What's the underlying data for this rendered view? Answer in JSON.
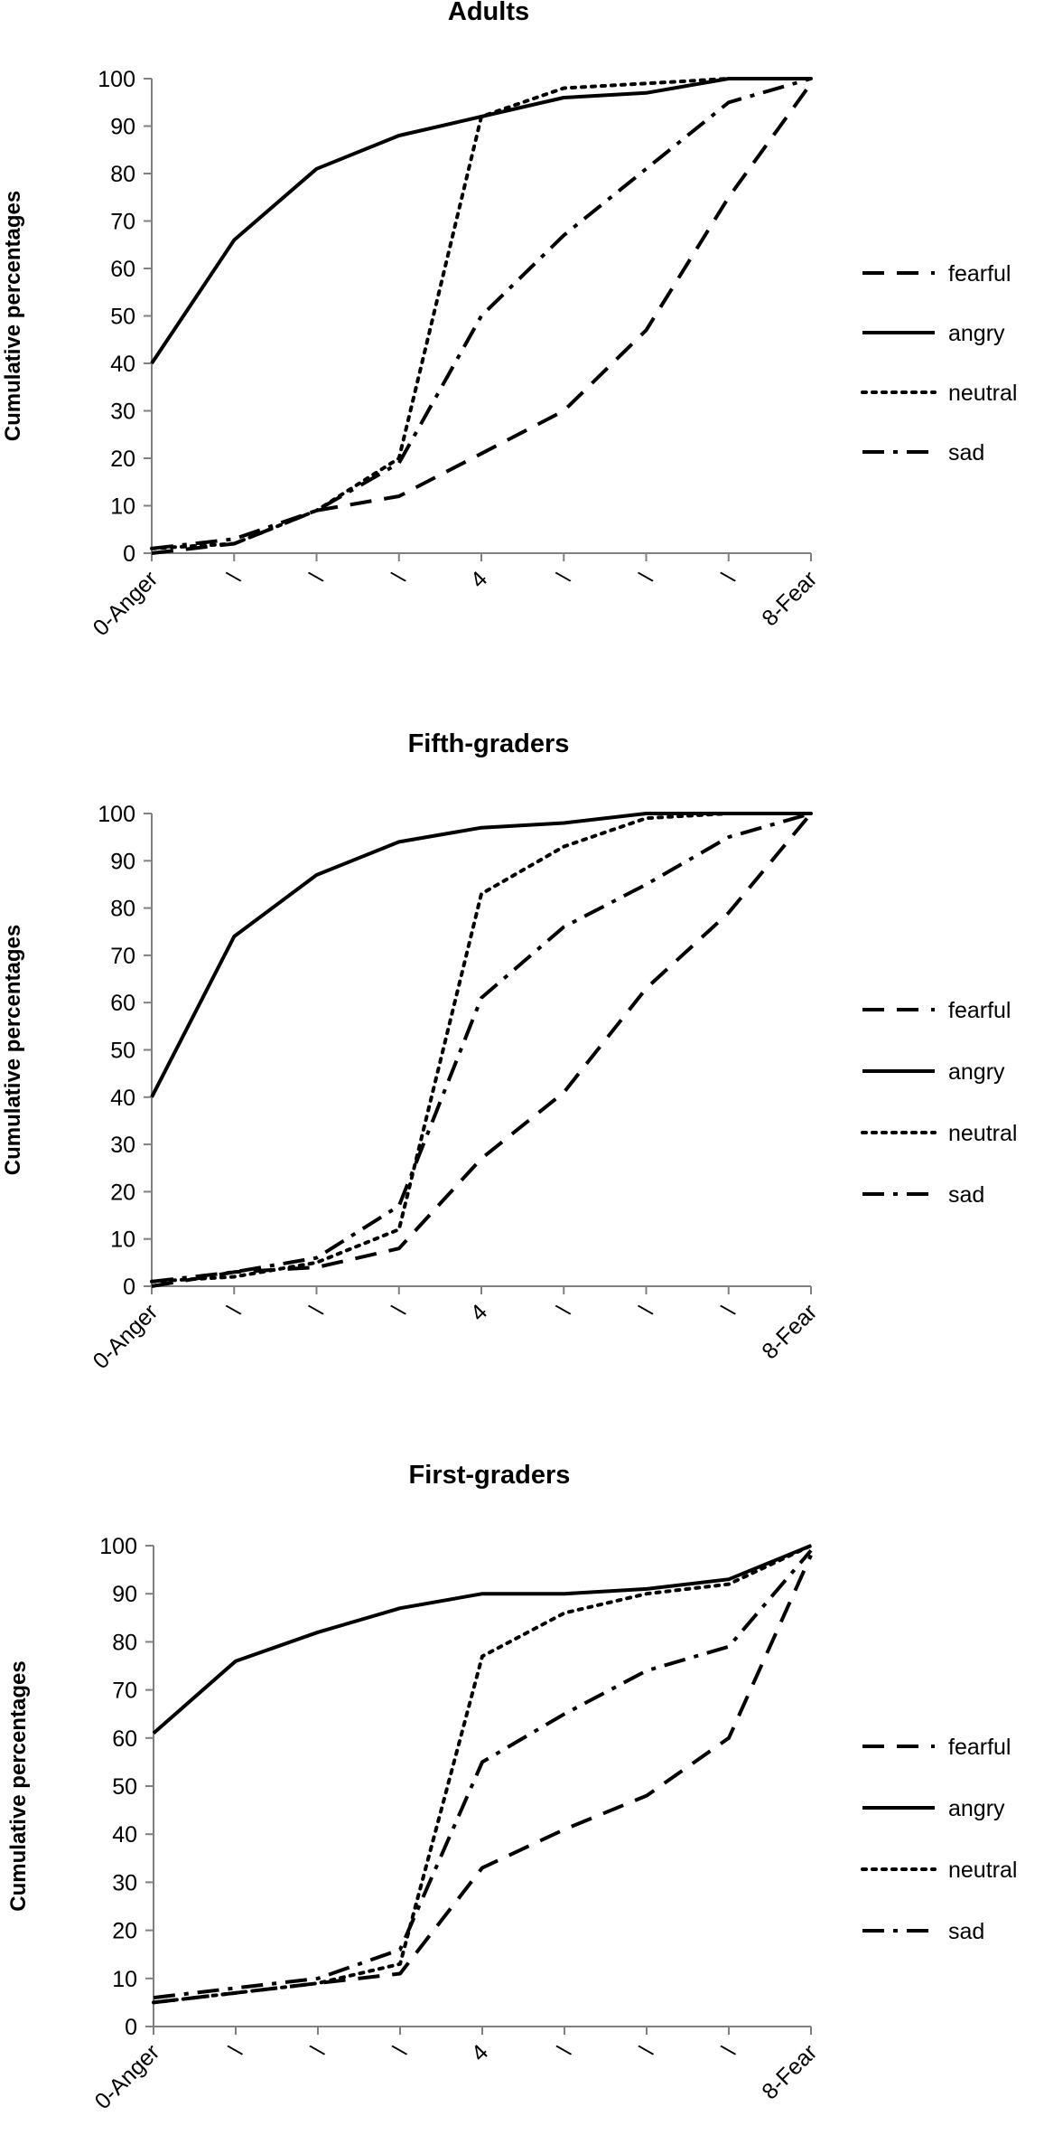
{
  "chart_data": [
    {
      "type": "line",
      "title": "Adults",
      "ylabel": "Cumulative percentages",
      "ylim": [
        0,
        100
      ],
      "yticks": [
        "0",
        "10",
        "20",
        "30",
        "40",
        "50",
        "60",
        "70",
        "80",
        "90",
        "100"
      ],
      "categories": [
        "0-Anger",
        "\\",
        "\\",
        "\\",
        "4",
        "\\",
        "\\",
        "\\",
        "8-Fear"
      ],
      "series": [
        {
          "name": "fearful",
          "style": "dashed",
          "values": [
            0,
            2,
            9,
            12,
            21,
            30,
            47,
            75,
            99
          ]
        },
        {
          "name": "angry",
          "style": "solid",
          "values": [
            40,
            66,
            81,
            88,
            92,
            96,
            97,
            100,
            100
          ]
        },
        {
          "name": "neutral",
          "style": "dotted",
          "values": [
            1,
            2,
            9,
            20,
            92,
            98,
            99,
            100,
            100
          ]
        },
        {
          "name": "sad",
          "style": "dashdot",
          "values": [
            1,
            3,
            9,
            19,
            50,
            67,
            81,
            95,
            100
          ]
        }
      ],
      "legend_position": "right"
    },
    {
      "type": "line",
      "title": "Fifth-graders",
      "ylabel": "Cumulative percentages",
      "ylim": [
        0,
        100
      ],
      "yticks": [
        "0",
        "10",
        "20",
        "30",
        "40",
        "50",
        "60",
        "70",
        "80",
        "90",
        "100"
      ],
      "categories": [
        "0-Anger",
        "\\",
        "\\",
        "\\",
        "4",
        "\\",
        "\\",
        "\\",
        "8-Fear"
      ],
      "series": [
        {
          "name": "fearful",
          "style": "dashed",
          "values": [
            0,
            3,
            4,
            8,
            27,
            41,
            63,
            79,
            100
          ]
        },
        {
          "name": "angry",
          "style": "solid",
          "values": [
            40,
            74,
            87,
            94,
            97,
            98,
            100,
            100,
            100
          ]
        },
        {
          "name": "neutral",
          "style": "dotted",
          "values": [
            1,
            2,
            5,
            12,
            83,
            93,
            99,
            100,
            100
          ]
        },
        {
          "name": "sad",
          "style": "dashdot",
          "values": [
            1,
            3,
            6,
            17,
            61,
            76,
            85,
            95,
            100
          ]
        }
      ],
      "legend_position": "right"
    },
    {
      "type": "line",
      "title": "First-graders",
      "ylabel": "Cumulative percentages",
      "ylim": [
        0,
        100
      ],
      "yticks": [
        "0",
        "10",
        "20",
        "30",
        "40",
        "50",
        "60",
        "70",
        "80",
        "90",
        "100"
      ],
      "categories": [
        "0-Anger",
        "\\",
        "\\",
        "\\",
        "4",
        "\\",
        "\\",
        "\\",
        "8-Fear"
      ],
      "series": [
        {
          "name": "fearful",
          "style": "dashed",
          "values": [
            5,
            7,
            9,
            11,
            33,
            41,
            48,
            60,
            98
          ]
        },
        {
          "name": "angry",
          "style": "solid",
          "values": [
            61,
            76,
            82,
            87,
            90,
            90,
            91,
            93,
            100
          ]
        },
        {
          "name": "neutral",
          "style": "dotted",
          "values": [
            5,
            7,
            9,
            13,
            77,
            86,
            90,
            92,
            100
          ]
        },
        {
          "name": "sad",
          "style": "dashdot",
          "values": [
            6,
            8,
            10,
            16,
            55,
            65,
            74,
            79,
            99
          ]
        }
      ],
      "legend_position": "right"
    }
  ]
}
